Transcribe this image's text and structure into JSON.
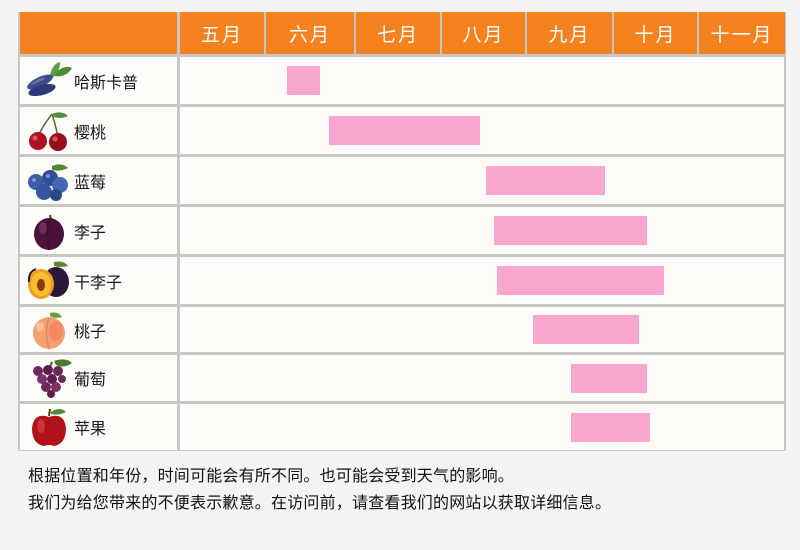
{
  "chart_data": {
    "type": "gantt",
    "months": [
      "五月",
      "六月",
      "七月",
      "八月",
      "九月",
      "十月",
      "十一月"
    ],
    "fruits": [
      {
        "name": "哈斯卡普",
        "icon": "haskap-icon",
        "start": "June 8",
        "end": "June 19"
      },
      {
        "name": "樱桃",
        "icon": "cherry-icon",
        "start": "June 22",
        "end": "August 15"
      },
      {
        "name": "蓝莓",
        "icon": "blueberry-icon",
        "start": "August 17",
        "end": "September 28"
      },
      {
        "name": "李子",
        "icon": "plum-icon",
        "start": "August 20",
        "end": "October 13"
      },
      {
        "name": "干李子",
        "icon": "prune-icon",
        "start": "August 21",
        "end": "October 19"
      },
      {
        "name": "桃子",
        "icon": "peach-icon",
        "start": "September 3",
        "end": "October 10"
      },
      {
        "name": "葡萄",
        "icon": "grape-icon",
        "start": "September 16",
        "end": "October 13"
      },
      {
        "name": "苹果",
        "icon": "apple-icon",
        "start": "September 16",
        "end": "October 14"
      }
    ]
  },
  "colors": {
    "header": "#f5821f",
    "bar": "#f9a7cf",
    "border": "#c7c7c7"
  },
  "notes": {
    "line1": "根据位置和年份，时间可能会有所不同。也可能会受到天气的影响。",
    "line2": "我们为给您带来的不便表示歉意。在访问前，请查看我们的网站以获取详细信息。"
  }
}
